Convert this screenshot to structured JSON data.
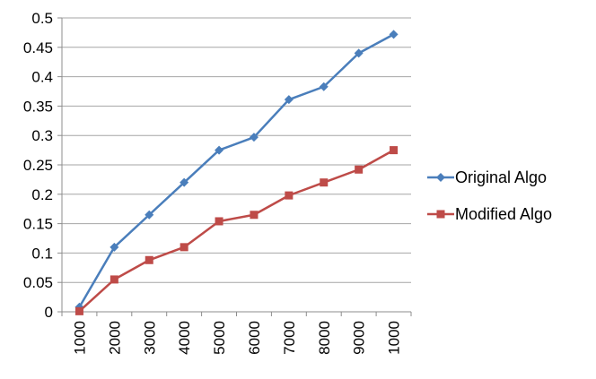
{
  "chart_data": {
    "type": "line",
    "title": "",
    "xlabel": "",
    "ylabel": "",
    "categories": [
      "1000",
      "2000",
      "3000",
      "4000",
      "5000",
      "6000",
      "7000",
      "8000",
      "9000",
      "1000"
    ],
    "ylim": [
      0,
      0.5
    ],
    "yticks": [
      "0",
      "0.05",
      "0.1",
      "0.15",
      "0.2",
      "0.25",
      "0.3",
      "0.35",
      "0.4",
      "0.45",
      "0.5"
    ],
    "grid": true,
    "legend": "right",
    "series": [
      {
        "name": "Original Algo",
        "color": "#4a7ebb",
        "marker": "diamond",
        "values": [
          0.008,
          0.11,
          0.165,
          0.22,
          0.275,
          0.297,
          0.361,
          0.383,
          0.44,
          0.472
        ]
      },
      {
        "name": "Modified Algo",
        "color": "#be4b48",
        "marker": "square",
        "values": [
          0.001,
          0.055,
          0.088,
          0.11,
          0.154,
          0.165,
          0.198,
          0.22,
          0.242,
          0.275
        ]
      }
    ]
  }
}
